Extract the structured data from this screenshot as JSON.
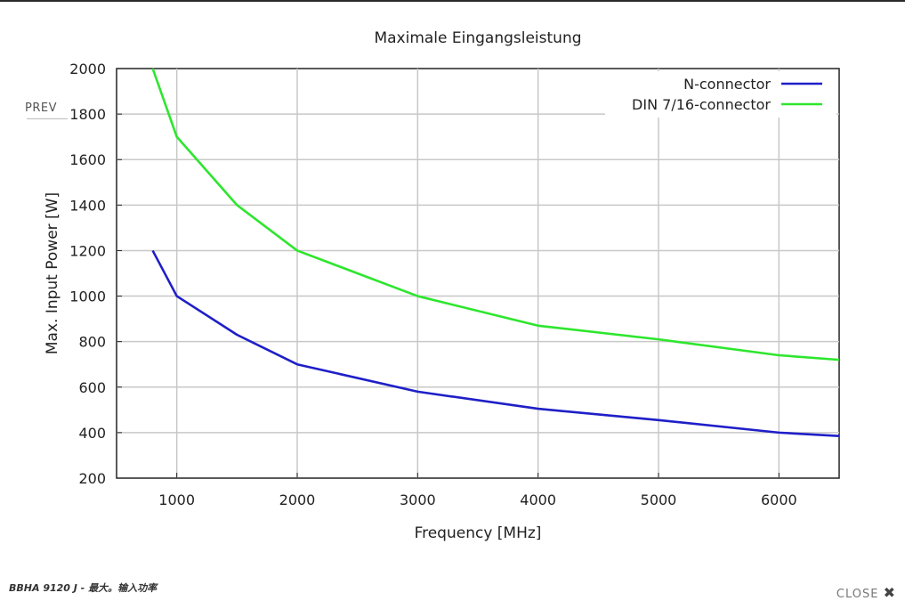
{
  "lightbox": {
    "prev_label": "PREV",
    "caption": "BBHA 9120 J - 最大。输入功率",
    "close_label": "CLOSE",
    "close_icon": "✖"
  },
  "chart_data": {
    "type": "line",
    "title": "Maximale Eingangsleistung",
    "xlabel": "Frequency [MHz]",
    "ylabel": "Max. Input Power [W]",
    "xlim": [
      500,
      6500
    ],
    "ylim": [
      200,
      2000
    ],
    "x_ticks": [
      1000,
      2000,
      3000,
      4000,
      5000,
      6000
    ],
    "y_ticks": [
      200,
      400,
      600,
      800,
      1000,
      1200,
      1400,
      1600,
      1800,
      2000
    ],
    "grid": true,
    "legend_position": "top-right",
    "series": [
      {
        "name": "N-connector",
        "color": "#1f1fc8",
        "x": [
          800,
          1000,
          1500,
          2000,
          3000,
          4000,
          5000,
          6000,
          6500
        ],
        "y": [
          1200,
          1000,
          830,
          700,
          580,
          505,
          455,
          400,
          385
        ]
      },
      {
        "name": "DIN 7/16-connector",
        "color": "#2ee62e",
        "x": [
          800,
          1000,
          1500,
          2000,
          3000,
          4000,
          5000,
          6000,
          6500
        ],
        "y": [
          2000,
          1700,
          1400,
          1200,
          1000,
          870,
          810,
          740,
          720
        ]
      }
    ]
  }
}
